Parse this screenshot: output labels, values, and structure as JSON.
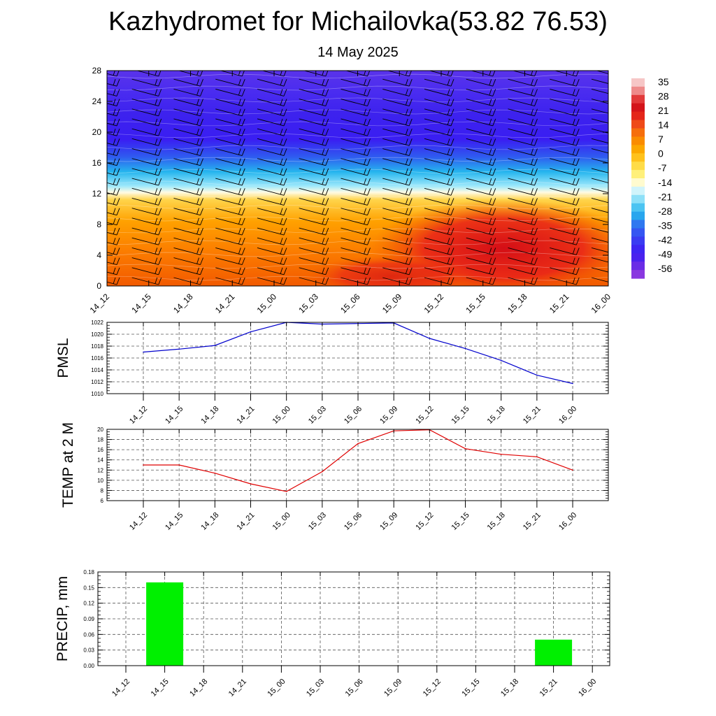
{
  "header": {
    "title": "Kazhydromet for Michailovka(53.82 76.53)",
    "subtitle": "14 May 2025"
  },
  "colors": {
    "pmsl_line": "#0000cc",
    "temp_line": "#e00000",
    "precip_bar": "#00f000",
    "barb": "#000000",
    "grid": "#555555"
  },
  "chart_data": [
    {
      "id": "cross-section",
      "type": "heatmap",
      "title": "",
      "categories": [
        "14_12",
        "14_15",
        "14_18",
        "14_21",
        "15_00",
        "15_03",
        "15_06",
        "15_09",
        "15_12",
        "15_15",
        "15_18",
        "15_21",
        "16_00"
      ],
      "y_ticks": [
        "0",
        "4",
        "8",
        "12",
        "16",
        "20",
        "24",
        "28"
      ],
      "ylim": [
        0,
        28
      ],
      "colorbar_labels": [
        "35",
        "28",
        "21",
        "14",
        "7",
        "0",
        "-7",
        "-14",
        "-21",
        "-28",
        "-35",
        "-42",
        "-49",
        "-56"
      ],
      "level_temperatures_by_height": {
        "heights": [
          0,
          4,
          8,
          12,
          16,
          20,
          24,
          28
        ],
        "profile_first_time": [
          14,
          12,
          7,
          -4,
          -35,
          -56,
          -53,
          -50
        ],
        "profile_last_time": [
          18,
          22,
          14,
          -2,
          -34,
          -54,
          -51,
          -55
        ]
      },
      "legend_position": "right",
      "has_wind_barbs": true
    },
    {
      "id": "pmsl",
      "type": "line",
      "ylabel": "PMSL",
      "categories": [
        "14_12",
        "14_15",
        "14_18",
        "14_21",
        "15_00",
        "15_03",
        "15_06",
        "15_09",
        "15_12",
        "15_15",
        "15_18",
        "15_21",
        "16_00"
      ],
      "values": [
        1017.0,
        1017.5,
        1018.1,
        1020.4,
        1022.0,
        1021.7,
        1021.8,
        1021.9,
        1019.3,
        1017.6,
        1015.6,
        1013.1,
        1011.7
      ],
      "y_ticks": [
        "1010",
        "1012",
        "1014",
        "1016",
        "1018",
        "1020",
        "1022"
      ],
      "ylim": [
        1010,
        1022
      ],
      "grid": true
    },
    {
      "id": "temp2m",
      "type": "line",
      "ylabel": "TEMP at 2 M",
      "categories": [
        "14_12",
        "14_15",
        "14_18",
        "14_21",
        "15_00",
        "15_03",
        "15_06",
        "15_09",
        "15_12",
        "15_15",
        "15_18",
        "15_21",
        "16_00"
      ],
      "values": [
        13.0,
        13.0,
        11.4,
        9.3,
        7.8,
        11.7,
        17.2,
        19.7,
        19.9,
        16.2,
        15.1,
        14.6,
        12.0
      ],
      "y_ticks": [
        "6",
        "8",
        "10",
        "12",
        "14",
        "16",
        "18",
        "20"
      ],
      "ylim": [
        6,
        20
      ],
      "grid": true
    },
    {
      "id": "precip",
      "type": "bar",
      "ylabel": "PRECIP, mm",
      "categories": [
        "14_12",
        "14_15",
        "14_18",
        "14_21",
        "15_00",
        "15_03",
        "15_06",
        "15_09",
        "15_12",
        "15_15",
        "15_18",
        "15_21",
        "16_00"
      ],
      "values": [
        0,
        0.16,
        0,
        0,
        0,
        0,
        0,
        0,
        0,
        0,
        0,
        0.05,
        0
      ],
      "y_ticks": [
        "0.00",
        "0.03",
        "0.06",
        "0.09",
        "0.12",
        "0.15",
        "0.18"
      ],
      "ylim": [
        0,
        0.18
      ],
      "grid": true
    }
  ]
}
